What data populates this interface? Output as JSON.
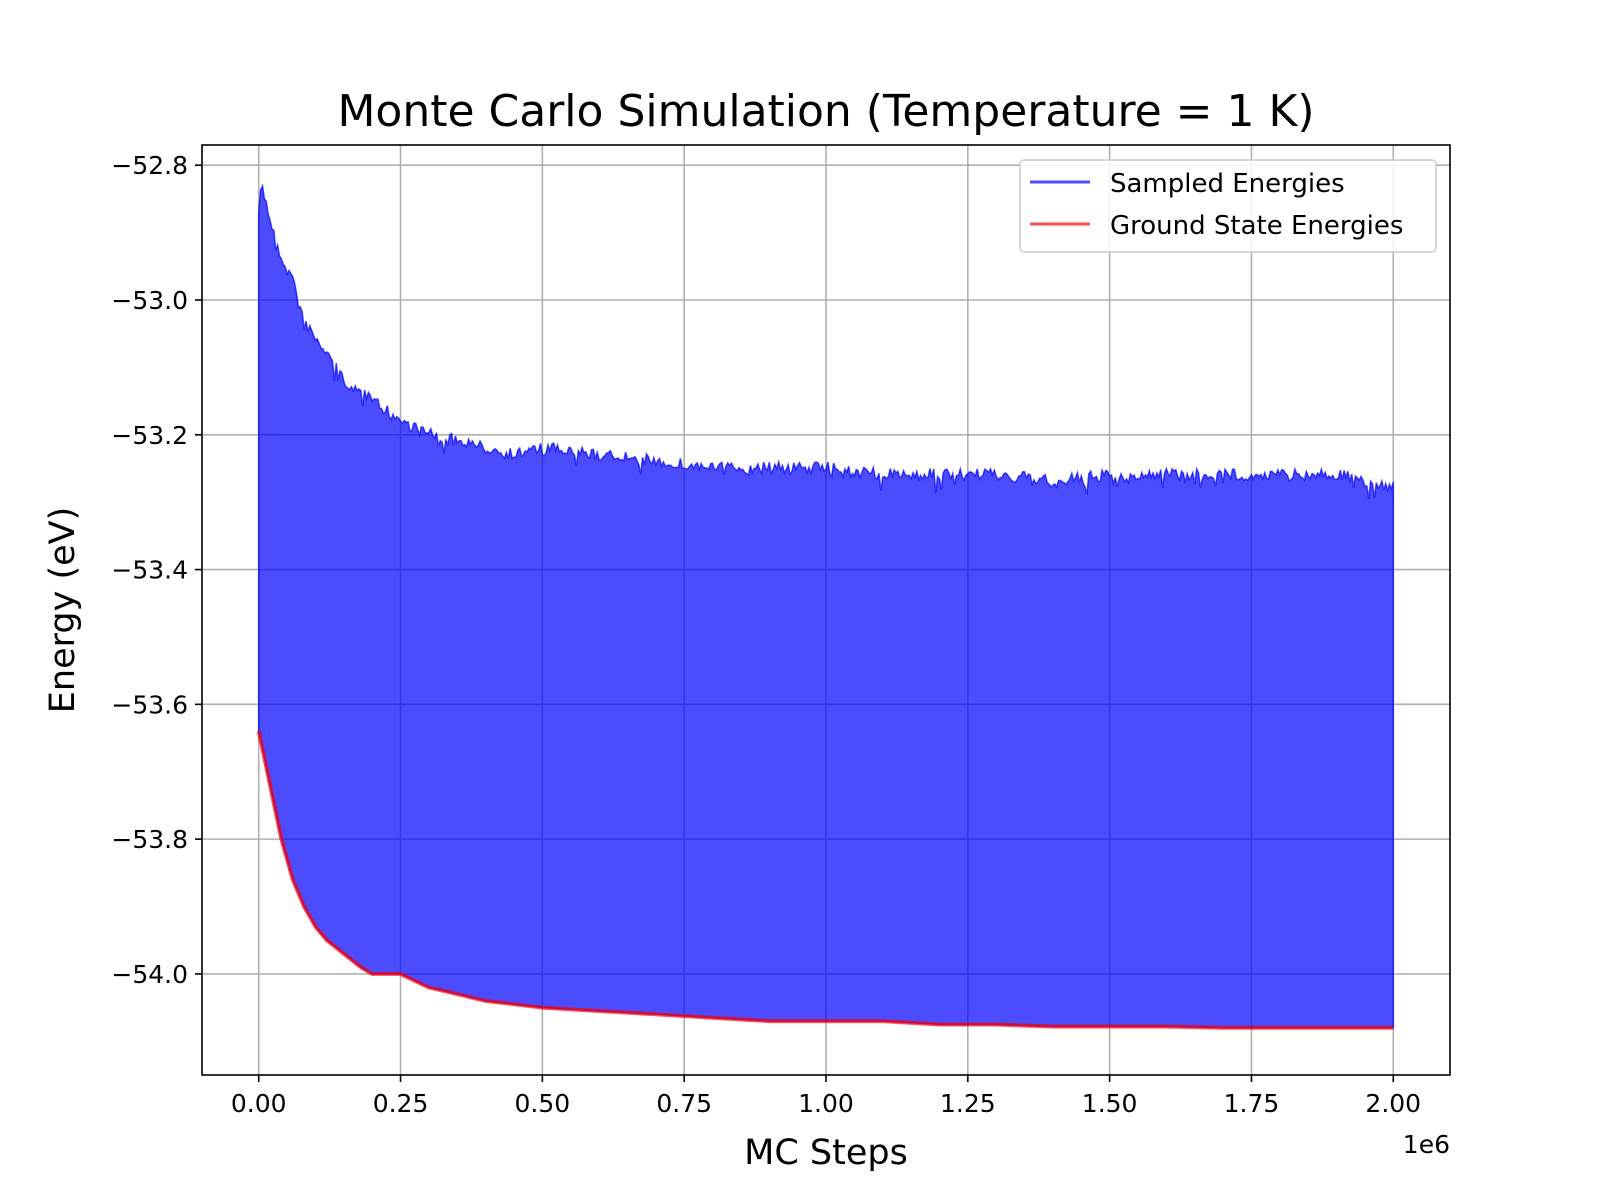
{
  "chart_data": {
    "type": "line",
    "title": "Monte Carlo Simulation (Temperature = 1 K)",
    "xlabel": "MC Steps",
    "ylabel": "Energy (eV)",
    "x_offset_text": "1e6",
    "xlim": [
      -0.1,
      2.1
    ],
    "ylim": [
      -54.15,
      -52.77
    ],
    "xticks": [
      0.0,
      0.25,
      0.5,
      0.75,
      1.0,
      1.25,
      1.5,
      1.75,
      2.0
    ],
    "xtick_labels": [
      "0.00",
      "0.25",
      "0.50",
      "0.75",
      "1.00",
      "1.25",
      "1.50",
      "1.75",
      "2.00"
    ],
    "yticks": [
      -52.8,
      -53.0,
      -53.2,
      -53.4,
      -53.6,
      -53.8,
      -54.0
    ],
    "ytick_labels": [
      "−52.8",
      "−53.0",
      "−53.2",
      "−53.4",
      "−53.6",
      "−53.8",
      "−54.0"
    ],
    "grid": true,
    "legend_position": "top-right",
    "series": [
      {
        "name": "Sampled Energies",
        "color": "#0000ff",
        "alpha": 0.7,
        "style": "band",
        "x": [
          0.0,
          0.005,
          0.02,
          0.04,
          0.06,
          0.08,
          0.1,
          0.12,
          0.15,
          0.18,
          0.2,
          0.25,
          0.3,
          0.35,
          0.4,
          0.45,
          0.5,
          0.6,
          0.7,
          0.8,
          0.9,
          1.0,
          1.1,
          1.2,
          1.3,
          1.4,
          1.5,
          1.6,
          1.7,
          1.8,
          1.9,
          2.0
        ],
        "upper": [
          -52.87,
          -52.82,
          -52.87,
          -52.93,
          -52.96,
          -53.02,
          -53.05,
          -53.07,
          -53.11,
          -53.13,
          -53.14,
          -53.17,
          -53.19,
          -53.2,
          -53.21,
          -53.22,
          -53.21,
          -53.22,
          -53.23,
          -53.24,
          -53.24,
          -53.24,
          -53.25,
          -53.25,
          -53.25,
          -53.26,
          -53.25,
          -53.25,
          -53.25,
          -53.25,
          -53.25,
          -53.27
        ],
        "lower": [
          -53.64,
          -53.66,
          -53.72,
          -53.8,
          -53.86,
          -53.9,
          -53.93,
          -53.95,
          -53.97,
          -53.99,
          -54.0,
          -54.0,
          -54.02,
          -54.03,
          -54.04,
          -54.045,
          -54.05,
          -54.055,
          -54.06,
          -54.065,
          -54.07,
          -54.07,
          -54.07,
          -54.075,
          -54.075,
          -54.078,
          -54.078,
          -54.078,
          -54.08,
          -54.08,
          -54.08,
          -54.08
        ]
      },
      {
        "name": "Ground State Energies",
        "color": "#ff0000",
        "alpha": 0.7,
        "style": "line",
        "x": [
          0.0,
          0.005,
          0.02,
          0.04,
          0.06,
          0.08,
          0.1,
          0.12,
          0.15,
          0.18,
          0.2,
          0.25,
          0.3,
          0.35,
          0.4,
          0.45,
          0.5,
          0.6,
          0.7,
          0.8,
          0.9,
          1.0,
          1.1,
          1.2,
          1.3,
          1.4,
          1.5,
          1.6,
          1.7,
          1.8,
          1.9,
          2.0
        ],
        "values": [
          -53.64,
          -53.66,
          -53.72,
          -53.8,
          -53.86,
          -53.9,
          -53.93,
          -53.95,
          -53.97,
          -53.99,
          -54.0,
          -54.0,
          -54.02,
          -54.03,
          -54.04,
          -54.045,
          -54.05,
          -54.055,
          -54.06,
          -54.065,
          -54.07,
          -54.07,
          -54.07,
          -54.075,
          -54.075,
          -54.078,
          -54.078,
          -54.078,
          -54.08,
          -54.08,
          -54.08,
          -54.08
        ]
      }
    ]
  }
}
